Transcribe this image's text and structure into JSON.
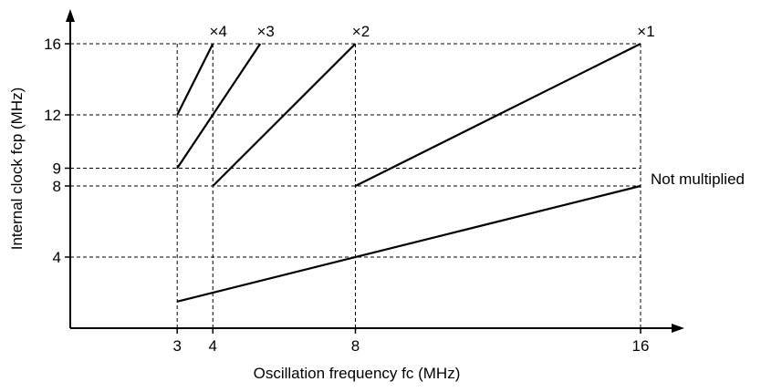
{
  "chart_data": {
    "type": "line",
    "xlabel": "Oscillation frequency fc (MHz)",
    "ylabel": "Internal clock fcp (MHz)",
    "x_ticks": [
      3,
      4,
      8,
      16
    ],
    "x_tick_labels": [
      "3",
      "4",
      "8",
      "16"
    ],
    "y_ticks": [
      4,
      8,
      9,
      12,
      16
    ],
    "y_tick_labels": [
      "4",
      "8",
      "9",
      "12",
      "16"
    ],
    "xlim": [
      0,
      16.7
    ],
    "ylim": [
      0,
      17.5
    ],
    "grid": "dashed at tick values",
    "series": [
      {
        "name": "×4",
        "x": [
          3,
          4
        ],
        "y": [
          12,
          16
        ]
      },
      {
        "name": "×3",
        "x": [
          3,
          5.33
        ],
        "y": [
          9,
          16
        ]
      },
      {
        "name": "×2",
        "x": [
          4,
          8
        ],
        "y": [
          8,
          16
        ]
      },
      {
        "name": "×1",
        "x": [
          8,
          16
        ],
        "y": [
          8,
          16
        ]
      },
      {
        "name": "Not multiplied",
        "x": [
          3,
          16
        ],
        "y": [
          1.5,
          8
        ]
      }
    ]
  }
}
